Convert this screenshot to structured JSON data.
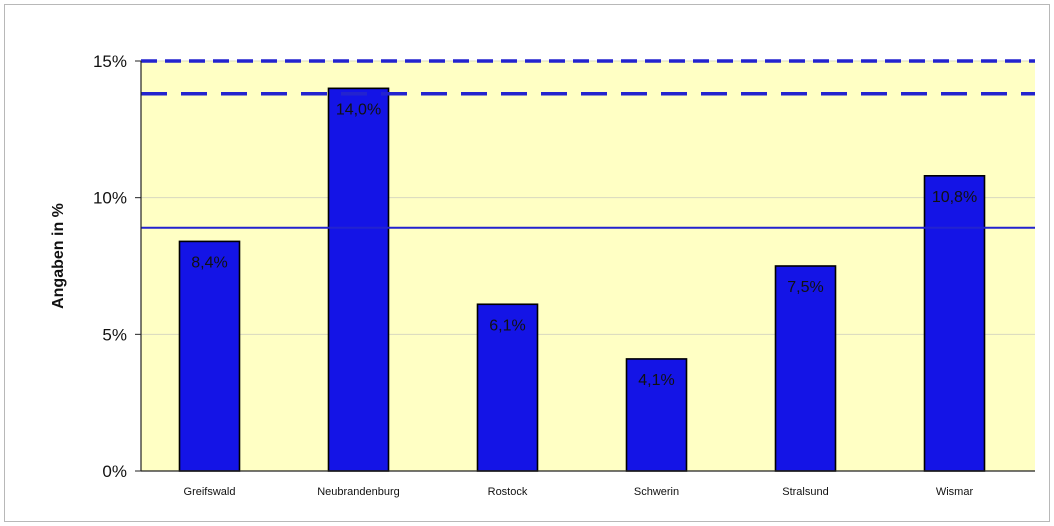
{
  "chart_data": {
    "type": "bar",
    "title": "",
    "xlabel": "",
    "ylabel": "Angaben in %",
    "ylim": [
      0,
      15
    ],
    "yticks": [
      0,
      5,
      10,
      15
    ],
    "ytick_labels": [
      "0%",
      "5%",
      "10%",
      "15%"
    ],
    "grid": true,
    "categories": [
      "Greifswald",
      "Neubrandenburg",
      "Rostock",
      "Schwerin",
      "Stralsund",
      "Wismar"
    ],
    "values": [
      8.4,
      14.0,
      6.1,
      4.1,
      7.5,
      10.8
    ],
    "data_labels": [
      "8,4%",
      "14,0%",
      "6,1%",
      "4,1%",
      "7,5%",
      "10,8%"
    ],
    "reference_lines": [
      {
        "style": "solid",
        "value": 8.9
      },
      {
        "style": "long-dash",
        "value": 13.8
      },
      {
        "style": "dash",
        "value": 15.0
      }
    ],
    "colors": {
      "bar": "#1414e6",
      "bar_outline": "#000000",
      "plot_background": "#ffffc4",
      "reference_line": "#2323cf",
      "gridline": "#d8d8c0"
    }
  }
}
